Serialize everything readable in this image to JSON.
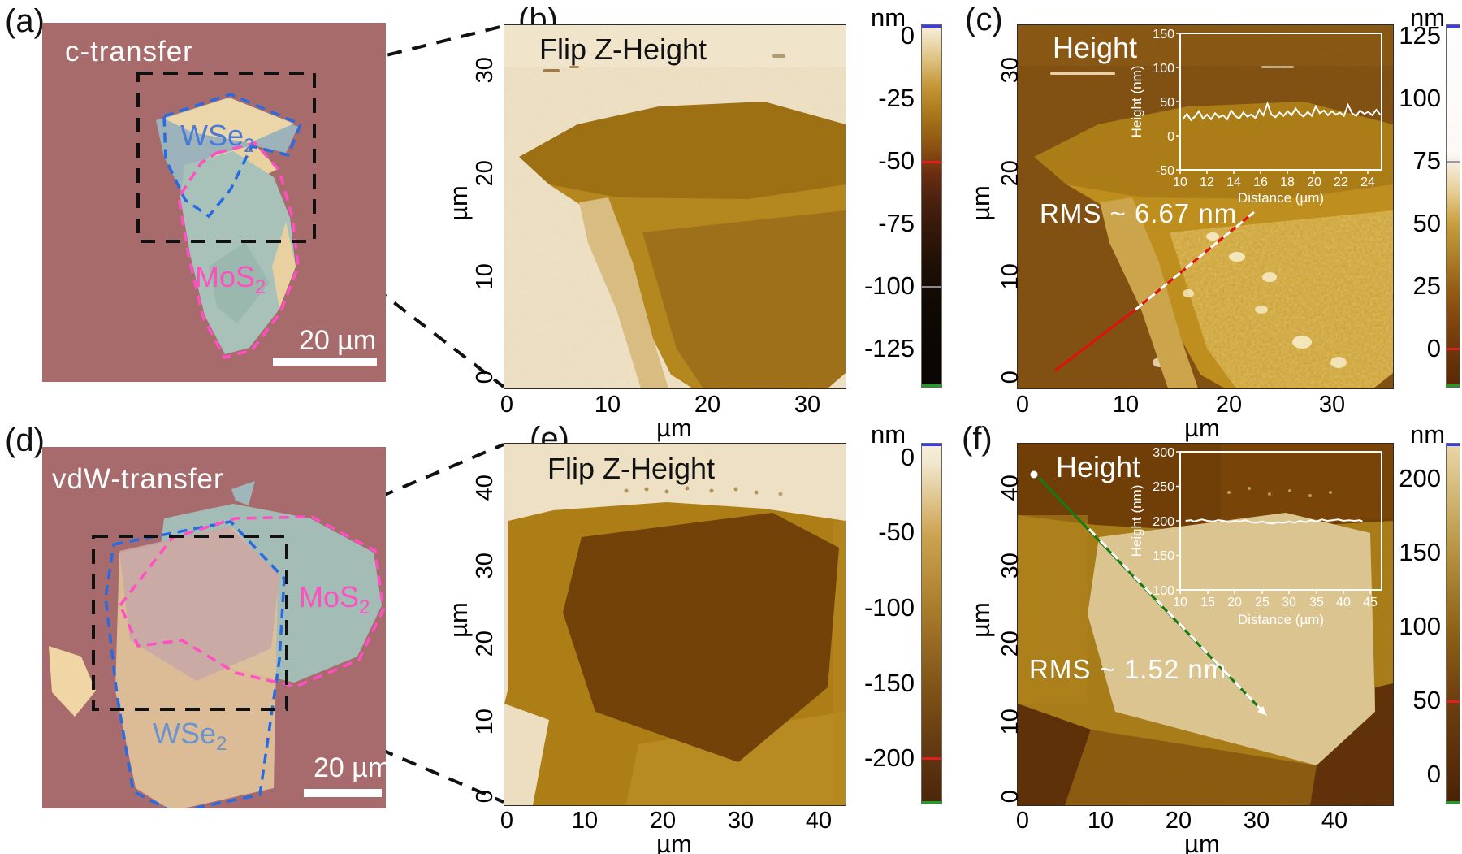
{
  "palette": {
    "optical_background": "#a5696b",
    "optical_flake_cream": "#eed7a8",
    "optical_flake_teal": "#a8c2ba",
    "optical_flake_gray_blue": "#9db3bb",
    "wse2_outline_blue": "#2a6ae0",
    "mos2_outline_pink": "#ff4fc2",
    "afm_gold": "#b5871d",
    "afm_dark_brown": "#6f3f07",
    "afm_cream": "#f3e8d1",
    "profile_line_red": "#e01010",
    "profile_line_green": "#157a15"
  },
  "figure": {
    "panels": {
      "a": {
        "label": "(a)",
        "caption": "c-transfer",
        "flakes": [
          {
            "name": "WSe",
            "sub": "2"
          },
          {
            "name": "MoS",
            "sub": "2"
          }
        ],
        "scale_bar": "20 µm"
      },
      "b": {
        "label": "(b)",
        "title": "Flip Z-Height",
        "x_ticks": [
          "0",
          "10",
          "20",
          "30"
        ],
        "y_ticks": [
          "30",
          "20",
          "10",
          "0"
        ],
        "x_label": "µm",
        "y_label": "µm",
        "colorbar": {
          "unit": "nm",
          "ticks": [
            "0",
            "-25",
            "-50",
            "-75",
            "-100",
            "-125"
          ],
          "gradient": [
            "#f8f1e1 0%",
            "#e3c98f 8%",
            "#c49636 17%",
            "#a8761a 25%",
            "#8a5012 34%",
            "#6b2d10 41%",
            "#512310 47%",
            "#38190a 55%",
            "#1f1006 66%",
            "#0f0803 78%",
            "#0a0502 100%"
          ],
          "markers": [
            {
              "color": "#3a3af0",
              "pos": 0.003
            },
            {
              "color": "#e02020",
              "pos": 0.378
            },
            {
              "color": "#8a8a8a",
              "pos": 0.723
            },
            {
              "color": "#20a020",
              "pos": 0.995
            }
          ]
        }
      },
      "c": {
        "label": "(c)",
        "title": "Height",
        "rms_label": "RMS ~ 6.67 nm",
        "x_ticks": [
          "0",
          "10",
          "20",
          "30"
        ],
        "y_ticks": [
          "30",
          "20",
          "10",
          "0"
        ],
        "x_label": "µm",
        "y_label": "µm",
        "colorbar": {
          "unit": "nm",
          "ticks": [
            "125",
            "100",
            "75",
            "50",
            "25",
            "0"
          ],
          "gradient": [
            "#fdfdfe 0%",
            "#fbfaf7 35%",
            "#f4ead6 39%",
            "#e3c98a 47%",
            "#c89d3c 55%",
            "#b0832c 63%",
            "#9a6418 71%",
            "#84490f 80%",
            "#6e3608 90%",
            "#582806 100%"
          ],
          "markers": [
            {
              "color": "#3a3af0",
              "pos": 0.003
            },
            {
              "color": "#9a9aa0",
              "pos": 0.378
            },
            {
              "color": "#e02020",
              "pos": 0.895
            },
            {
              "color": "#20a020",
              "pos": 0.995
            }
          ]
        },
        "inset": {
          "y_label": "Height (nm)",
          "x_label": "Distance (µm)",
          "y_ticks": [
            "150",
            "100",
            "50",
            "0",
            "-50"
          ],
          "x_ticks": [
            "10",
            "12",
            "14",
            "16",
            "18",
            "20",
            "22",
            "24"
          ]
        }
      },
      "d": {
        "label": "(d)",
        "caption": "vdW-transfer",
        "flakes": [
          {
            "name": "MoS",
            "sub": "2"
          },
          {
            "name": "WSe",
            "sub": "2"
          }
        ],
        "scale_bar": "20 µm"
      },
      "e": {
        "label": "(e)",
        "title": "Flip Z-Height",
        "x_ticks": [
          "0",
          "10",
          "20",
          "30",
          "40"
        ],
        "y_ticks": [
          "40",
          "30",
          "20",
          "10",
          "0"
        ],
        "x_label": "µm",
        "y_label": "µm",
        "colorbar": {
          "unit": "nm",
          "ticks": [
            "0",
            "-50",
            "-100",
            "-150",
            "-200"
          ],
          "gradient": [
            "#f6efdc 0%",
            "#f2e8d0 5%",
            "#cda452 25%",
            "#a97c2c 46%",
            "#815418 67%",
            "#5e3610 87%",
            "#4a250a 100%"
          ],
          "markers": [
            {
              "color": "#3a3af0",
              "pos": 0.003
            },
            {
              "color": "#e02020",
              "pos": 0.874
            },
            {
              "color": "#20a020",
              "pos": 0.995
            }
          ]
        }
      },
      "f": {
        "label": "(f)",
        "title": "Height",
        "rms_label": "RMS ~ 1.52 nm",
        "x_ticks": [
          "0",
          "10",
          "20",
          "30",
          "40"
        ],
        "y_ticks": [
          "40",
          "30",
          "20",
          "10",
          "0"
        ],
        "x_label": "µm",
        "y_label": "µm",
        "colorbar": {
          "unit": "nm",
          "ticks": [
            "200",
            "150",
            "100",
            "50",
            "0"
          ],
          "gradient": [
            "#e9d7a8 0%",
            "#d9c183 10%",
            "#b59040 31%",
            "#8f6318 51%",
            "#6e3f0e 71%",
            "#552a08 92%",
            "#482206 100%"
          ],
          "markers": [
            {
              "color": "#3a3af0",
              "pos": 0.003
            },
            {
              "color": "#e02020",
              "pos": 0.715
            },
            {
              "color": "#20a020",
              "pos": 0.995
            }
          ]
        },
        "inset": {
          "y_label": "Height (nm)",
          "x_label": "Distance (µm)",
          "y_ticks": [
            "300",
            "250",
            "200",
            "150",
            "100"
          ],
          "x_ticks": [
            "10",
            "15",
            "20",
            "25",
            "30",
            "35",
            "40",
            "45"
          ]
        }
      }
    }
  },
  "chart_data": [
    {
      "id": "panel-c-inset-profile",
      "type": "line",
      "title": "",
      "xlabel": "Distance (µm)",
      "ylabel": "Height (nm)",
      "x_range": [
        10,
        25
      ],
      "y_range": [
        -50,
        150
      ],
      "x_tick_values": [
        10,
        12,
        14,
        16,
        18,
        20,
        22,
        24
      ],
      "y_tick_values": [
        150,
        100,
        50,
        0,
        -50
      ],
      "line_color": "#ffffff",
      "legend": "none",
      "points": [
        [
          10.2,
          24
        ],
        [
          10.5,
          32
        ],
        [
          10.8,
          23
        ],
        [
          11.1,
          28
        ],
        [
          11.4,
          36
        ],
        [
          11.7,
          25
        ],
        [
          12.0,
          31
        ],
        [
          12.3,
          24
        ],
        [
          12.6,
          33
        ],
        [
          12.9,
          27
        ],
        [
          13.2,
          30
        ],
        [
          13.5,
          24
        ],
        [
          13.8,
          37
        ],
        [
          14.1,
          29
        ],
        [
          14.4,
          25
        ],
        [
          14.7,
          34
        ],
        [
          15.0,
          28
        ],
        [
          15.3,
          31
        ],
        [
          15.6,
          26
        ],
        [
          15.9,
          38
        ],
        [
          16.2,
          30
        ],
        [
          16.5,
          47
        ],
        [
          16.8,
          31
        ],
        [
          17.1,
          27
        ],
        [
          17.4,
          34
        ],
        [
          17.7,
          29
        ],
        [
          18.0,
          36
        ],
        [
          18.3,
          30
        ],
        [
          18.6,
          40
        ],
        [
          18.9,
          32
        ],
        [
          19.2,
          28
        ],
        [
          19.5,
          35
        ],
        [
          19.8,
          29
        ],
        [
          20.1,
          43
        ],
        [
          20.4,
          33
        ],
        [
          20.7,
          37
        ],
        [
          21.0,
          30
        ],
        [
          21.3,
          36
        ],
        [
          21.6,
          31
        ],
        [
          21.9,
          34
        ],
        [
          22.2,
          29
        ],
        [
          22.5,
          45
        ],
        [
          22.8,
          33
        ],
        [
          23.1,
          29
        ],
        [
          23.4,
          37
        ],
        [
          23.7,
          32
        ],
        [
          24.0,
          35
        ],
        [
          24.3,
          30
        ],
        [
          24.6,
          38
        ],
        [
          24.9,
          31
        ]
      ]
    },
    {
      "id": "panel-f-inset-profile",
      "type": "line",
      "title": "",
      "xlabel": "Distance (µm)",
      "ylabel": "Height (nm)",
      "x_range": [
        10,
        47
      ],
      "y_range": [
        100,
        300
      ],
      "x_tick_values": [
        10,
        15,
        20,
        25,
        30,
        35,
        40,
        45
      ],
      "y_tick_values": [
        300,
        250,
        200,
        150,
        100
      ],
      "line_color": "#ffffff",
      "legend": "none",
      "points": [
        [
          11,
          200
        ],
        [
          12,
          201
        ],
        [
          12.5,
          199
        ],
        [
          13,
          200
        ],
        [
          14,
          202
        ],
        [
          15,
          200
        ],
        [
          16,
          199
        ],
        [
          17,
          201
        ],
        [
          18,
          200
        ],
        [
          19,
          198
        ],
        [
          20,
          200
        ],
        [
          21,
          199
        ],
        [
          22,
          201
        ],
        [
          23,
          198
        ],
        [
          24,
          197
        ],
        [
          25,
          199
        ],
        [
          26,
          197
        ],
        [
          27,
          196
        ],
        [
          28,
          198
        ],
        [
          29,
          197
        ],
        [
          30,
          199
        ],
        [
          31,
          197
        ],
        [
          32,
          200
        ],
        [
          33,
          198
        ],
        [
          34,
          201
        ],
        [
          35,
          199
        ],
        [
          36,
          202
        ],
        [
          37,
          200
        ],
        [
          38,
          201
        ],
        [
          39,
          202
        ],
        [
          40,
          200
        ],
        [
          41,
          201
        ],
        [
          42,
          200
        ],
        [
          43,
          201
        ],
        [
          43.5,
          199
        ]
      ]
    }
  ]
}
